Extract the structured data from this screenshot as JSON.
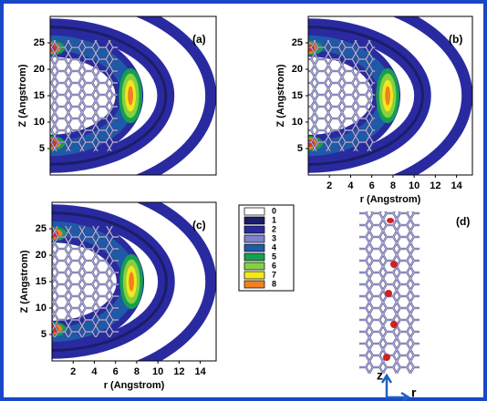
{
  "chart_data": [
    {
      "type": "contour",
      "panel_label": "(a)",
      "ylabel": "Z (Angstrom)",
      "xlim": [
        0,
        15.5
      ],
      "ylim": [
        0,
        30
      ],
      "yticks": [
        5,
        10,
        15,
        20,
        25
      ]
    },
    {
      "type": "contour",
      "panel_label": "(b)",
      "ylabel": "Z (Angstrom)",
      "xlabel": "r (Angstrom)",
      "xlim": [
        0,
        15.5
      ],
      "ylim": [
        0,
        30
      ],
      "xticks": [
        2,
        4,
        6,
        8,
        10,
        12,
        14
      ],
      "yticks": [
        5,
        10,
        15,
        20,
        25
      ]
    },
    {
      "type": "contour",
      "panel_label": "(c)",
      "ylabel": "Z (Angstrom)",
      "xlabel": "r (Angstrom)",
      "xlim": [
        0,
        15.5
      ],
      "ylim": [
        0,
        30
      ],
      "xticks": [
        2,
        4,
        6,
        8,
        10,
        12,
        14
      ],
      "yticks": [
        5,
        10,
        15,
        20,
        25
      ]
    }
  ],
  "legend": {
    "levels": [
      {
        "label": "0",
        "color": "#ffffff"
      },
      {
        "label": "1",
        "color": "#1c1c6a"
      },
      {
        "label": "2",
        "color": "#2a2aa0"
      },
      {
        "label": "3",
        "color": "#8080d2"
      },
      {
        "label": "4",
        "color": "#1f5aa8"
      },
      {
        "label": "5",
        "color": "#14a050"
      },
      {
        "label": "6",
        "color": "#88d040"
      },
      {
        "label": "7",
        "color": "#f2e820"
      },
      {
        "label": "8",
        "color": "#f08020"
      }
    ]
  },
  "panel_d": {
    "label": "(d)",
    "axis_z": "z",
    "axis_r": "r"
  }
}
